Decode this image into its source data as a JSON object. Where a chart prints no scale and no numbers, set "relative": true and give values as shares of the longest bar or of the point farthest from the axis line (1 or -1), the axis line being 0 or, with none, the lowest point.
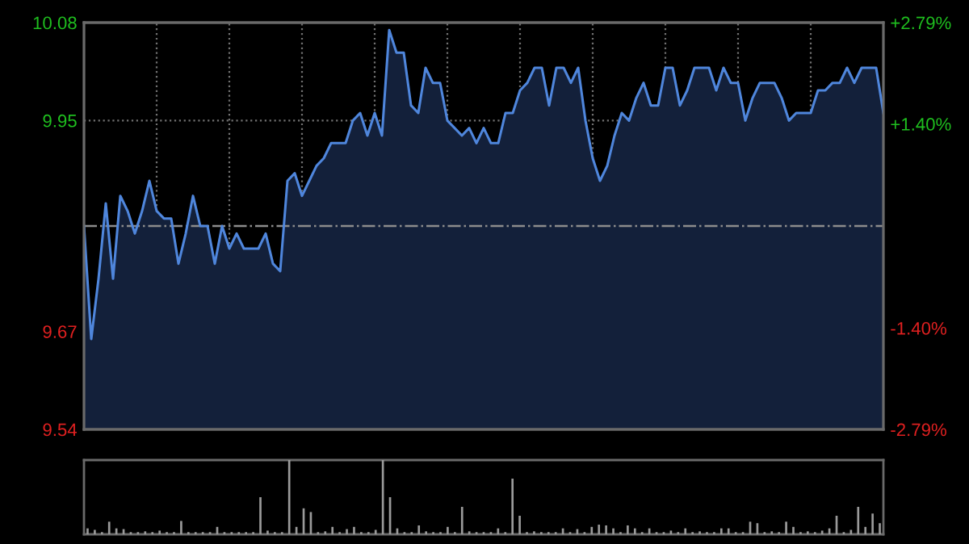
{
  "chart_data": [
    {
      "type": "area",
      "categories": [
        null,
        null,
        null,
        null,
        null,
        null,
        null,
        null,
        null,
        null,
        null,
        null,
        null,
        null,
        null,
        null,
        null,
        null,
        null,
        null,
        null,
        null,
        null,
        null,
        null,
        null,
        null,
        null,
        null,
        null,
        null,
        null,
        null,
        null,
        null,
        null,
        null,
        null,
        null,
        null,
        null,
        null,
        null,
        null,
        null,
        null,
        null,
        null,
        null,
        null,
        null,
        null,
        null,
        null,
        null,
        null,
        null,
        null,
        null,
        null,
        null,
        null,
        null,
        null,
        null,
        null,
        null,
        null,
        null,
        null,
        null,
        null,
        null,
        null,
        null,
        null,
        null,
        null,
        null,
        null,
        null,
        null,
        null,
        null,
        null,
        null,
        null,
        null,
        null,
        null,
        null,
        null,
        null,
        null,
        null,
        null,
        null,
        null,
        null,
        null,
        null,
        null,
        null,
        null,
        null,
        null,
        null,
        null,
        null,
        null,
        null
      ],
      "series": [
        {
          "color": "#4f86dc",
          "values": [
            9.81,
            9.66,
            9.74,
            9.84,
            9.74,
            9.85,
            9.83,
            9.8,
            9.83,
            9.87,
            9.83,
            9.82,
            9.82,
            9.76,
            9.8,
            9.85,
            9.81,
            9.81,
            9.76,
            9.81,
            9.78,
            9.8,
            9.78,
            9.78,
            9.78,
            9.8,
            9.76,
            9.75,
            9.87,
            9.88,
            9.85,
            9.87,
            9.89,
            9.9,
            9.92,
            9.92,
            9.92,
            9.95,
            9.96,
            9.93,
            9.96,
            9.93,
            10.07,
            10.04,
            10.04,
            9.97,
            9.96,
            10.02,
            10.0,
            10.0,
            9.95,
            9.94,
            9.93,
            9.94,
            9.92,
            9.94,
            9.92,
            9.92,
            9.96,
            9.96,
            9.99,
            10.0,
            10.02,
            10.02,
            9.97,
            10.02,
            10.02,
            10.0,
            10.02,
            9.95,
            9.9,
            9.87,
            9.89,
            9.93,
            9.96,
            9.95,
            9.98,
            10.0,
            9.97,
            9.97,
            10.02,
            10.02,
            9.97,
            9.99,
            10.02,
            10.02,
            10.02,
            9.99,
            10.02,
            10.0,
            10.0,
            9.95,
            9.98,
            10.0,
            10.0,
            10.0,
            9.98,
            9.95,
            9.96,
            9.96,
            9.96,
            9.99,
            9.99,
            10.0,
            10.0,
            10.02,
            10.0,
            10.02,
            10.02,
            10.02,
            9.96
          ]
        }
      ],
      "ylim": [
        9.54,
        10.08
      ],
      "yticks": [
        9.54,
        9.67,
        9.95,
        10.08
      ],
      "y2lim": [
        -2.79,
        2.79
      ],
      "y2ticks": [
        {
          "value": -2.79,
          "label": "-2.79%"
        },
        {
          "value": -1.4,
          "label": "-1.40%"
        },
        {
          "value": 1.4,
          "label": "+1.40%"
        },
        {
          "value": 2.79,
          "label": "+2.79%"
        }
      ],
      "ref_lines": [
        {
          "axis": "y",
          "value": 9.81,
          "color": "#8c8c8c",
          "line_style": "dashdot"
        }
      ],
      "grid": true
    },
    {
      "type": "bar",
      "categories": [
        null,
        null,
        null,
        null,
        null,
        null,
        null,
        null,
        null,
        null,
        null,
        null,
        null,
        null,
        null,
        null,
        null,
        null,
        null,
        null,
        null,
        null,
        null,
        null,
        null,
        null,
        null,
        null,
        null,
        null,
        null,
        null,
        null,
        null,
        null,
        null,
        null,
        null,
        null,
        null,
        null,
        null,
        null,
        null,
        null,
        null,
        null,
        null,
        null,
        null,
        null,
        null,
        null,
        null,
        null,
        null,
        null,
        null,
        null,
        null,
        null,
        null,
        null,
        null,
        null,
        null,
        null,
        null,
        null,
        null,
        null,
        null,
        null,
        null,
        null,
        null,
        null,
        null,
        null,
        null,
        null,
        null,
        null,
        null,
        null,
        null,
        null,
        null,
        null,
        null,
        null,
        null,
        null,
        null,
        null,
        null,
        null,
        null,
        null,
        null,
        null,
        null,
        null,
        null,
        null,
        null,
        null,
        null,
        null,
        null,
        null
      ],
      "values": [
        0.08,
        0.06,
        0.03,
        0.17,
        0.08,
        0.07,
        0.03,
        0.03,
        0.04,
        0.03,
        0.05,
        0.03,
        0.03,
        0.18,
        0.03,
        0.03,
        0.03,
        0.03,
        0.1,
        0.03,
        0.03,
        0.03,
        0.03,
        0.03,
        0.5,
        0.05,
        0.03,
        0.03,
        1.0,
        0.1,
        0.35,
        0.3,
        0.03,
        0.04,
        0.1,
        0.03,
        0.07,
        0.1,
        0.03,
        0.03,
        0.06,
        1.0,
        0.5,
        0.08,
        0.03,
        0.03,
        0.12,
        0.04,
        0.03,
        0.03,
        0.1,
        0.03,
        0.37,
        0.04,
        0.03,
        0.03,
        0.03,
        0.08,
        0.03,
        0.75,
        0.25,
        0.03,
        0.04,
        0.03,
        0.03,
        0.03,
        0.08,
        0.03,
        0.07,
        0.03,
        0.1,
        0.13,
        0.12,
        0.08,
        0.03,
        0.12,
        0.08,
        0.03,
        0.08,
        0.03,
        0.03,
        0.05,
        0.03,
        0.08,
        0.03,
        0.04,
        0.03,
        0.03,
        0.08,
        0.08,
        0.03,
        0.03,
        0.17,
        0.15,
        0.03,
        0.04,
        0.03,
        0.17,
        0.1,
        0.03,
        0.04,
        0.03,
        0.05,
        0.08,
        0.25,
        0.03,
        0.06,
        0.37,
        0.1,
        0.28,
        0.15
      ],
      "color": "#9a9a9a",
      "relative": true
    }
  ]
}
